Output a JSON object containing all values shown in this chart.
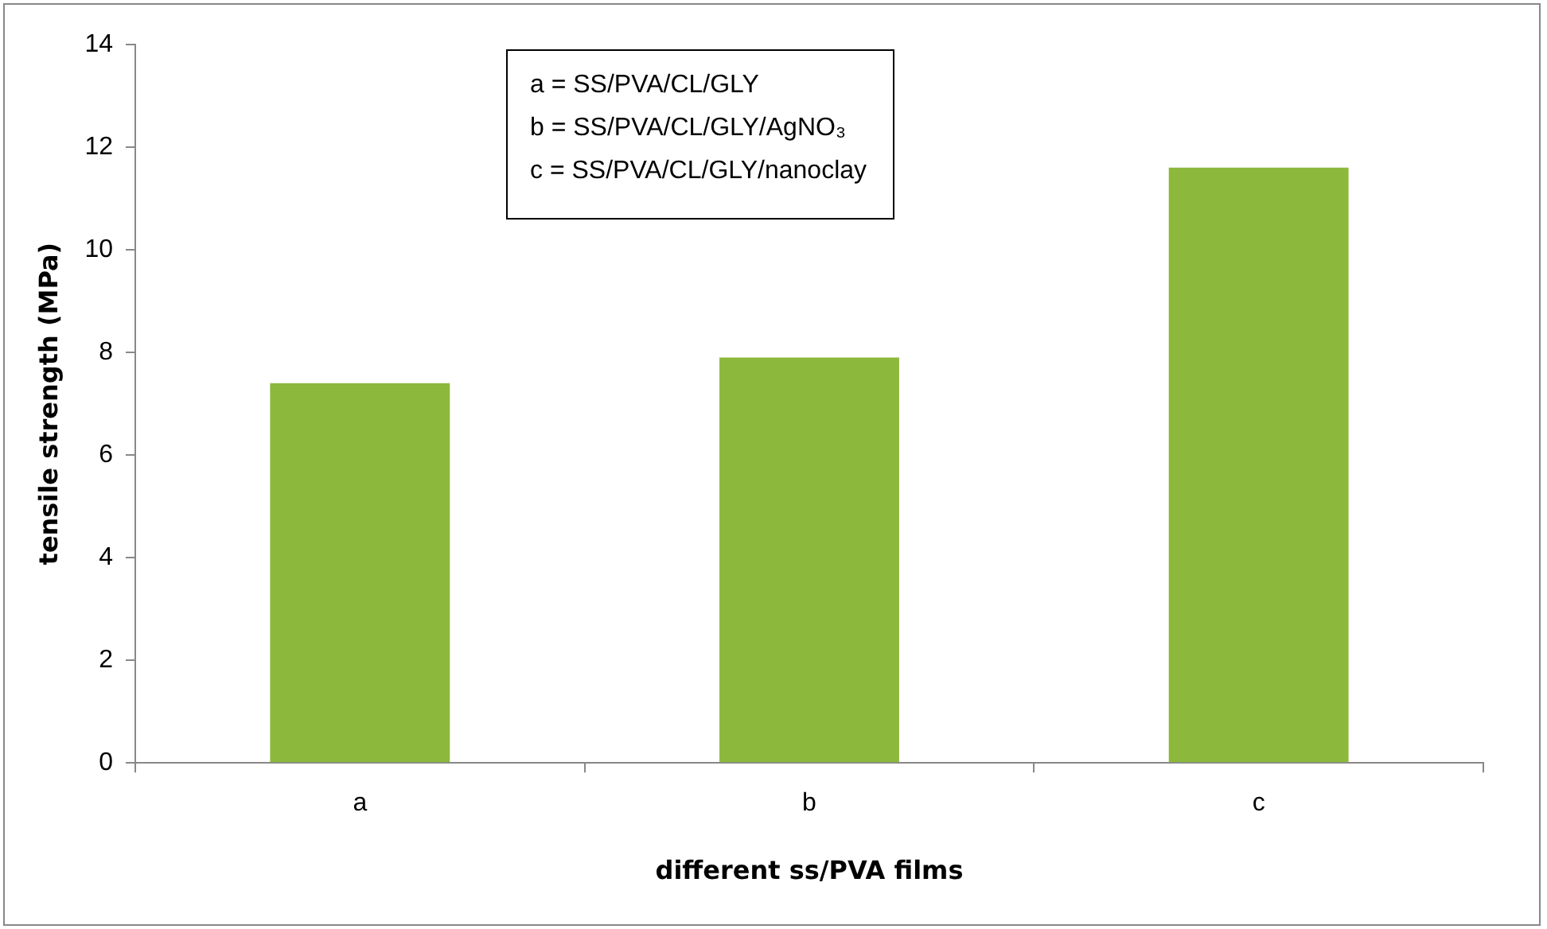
{
  "chart_data": {
    "type": "bar",
    "xlabel": "different ss/PVA films",
    "ylabel": "tensile strength (MPa)",
    "categories": [
      "a",
      "b",
      "c"
    ],
    "values": [
      7.4,
      7.9,
      11.6
    ],
    "color": "#8cb83c",
    "ylim": [
      0,
      14
    ],
    "yticks": [
      0,
      2,
      4,
      6,
      8,
      10,
      12,
      14
    ],
    "grid": false,
    "legend": false,
    "annotations": [
      "a = SS/PVA/CL/GLY",
      "b = SS/PVA/CL/GLY/AgNO₃",
      "c = SS/PVA/CL/GLY/nanoclay"
    ]
  }
}
